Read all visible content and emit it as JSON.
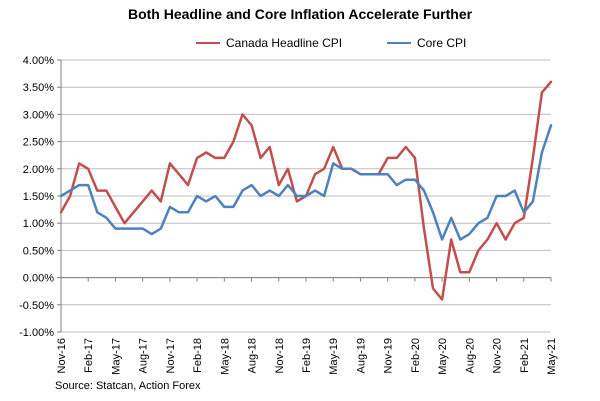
{
  "title": "Both Headline and Core Inflation Accelerate Further",
  "source": "Source: Statcan, Action Forex",
  "chart_data": {
    "type": "line",
    "title": "Both Headline and Core Inflation Accelerate Further",
    "xlabel": "",
    "ylabel": "",
    "ylim": [
      -1.0,
      4.0
    ],
    "y_ticks": [
      "4.00%",
      "3.50%",
      "3.00%",
      "2.50%",
      "2.00%",
      "1.50%",
      "1.00%",
      "0.50%",
      "0.00%",
      "-0.50%",
      "-1.00%"
    ],
    "x_tick_labels": [
      "Nov-16",
      "Feb-17",
      "May-17",
      "Aug-17",
      "Nov-17",
      "Feb-18",
      "May-18",
      "Aug-18",
      "Nov-18",
      "Feb-19",
      "May-19",
      "Aug-19",
      "Nov-19",
      "Feb-20",
      "May-20",
      "Aug-20",
      "Nov-20",
      "Feb-21",
      "May-21"
    ],
    "grid": true,
    "legend_position": "top-center",
    "x": [
      "Nov-16",
      "Dec-16",
      "Jan-17",
      "Feb-17",
      "Mar-17",
      "Apr-17",
      "May-17",
      "Jun-17",
      "Jul-17",
      "Aug-17",
      "Sep-17",
      "Oct-17",
      "Nov-17",
      "Dec-17",
      "Jan-18",
      "Feb-18",
      "Mar-18",
      "Apr-18",
      "May-18",
      "Jun-18",
      "Jul-18",
      "Aug-18",
      "Sep-18",
      "Oct-18",
      "Nov-18",
      "Dec-18",
      "Jan-19",
      "Feb-19",
      "Mar-19",
      "Apr-19",
      "May-19",
      "Jun-19",
      "Jul-19",
      "Aug-19",
      "Sep-19",
      "Oct-19",
      "Nov-19",
      "Dec-19",
      "Jan-20",
      "Feb-20",
      "Mar-20",
      "Apr-20",
      "May-20",
      "Jun-20",
      "Jul-20",
      "Aug-20",
      "Sep-20",
      "Oct-20",
      "Nov-20",
      "Dec-20",
      "Jan-21",
      "Feb-21",
      "Mar-21",
      "Apr-21",
      "May-21"
    ],
    "series": [
      {
        "name": "Canada Headline CPI",
        "color": "#c0504d",
        "values": [
          1.2,
          1.5,
          2.1,
          2.0,
          1.6,
          1.6,
          1.3,
          1.0,
          1.2,
          1.4,
          1.6,
          1.4,
          2.1,
          1.9,
          1.7,
          2.2,
          2.3,
          2.2,
          2.2,
          2.5,
          3.0,
          2.8,
          2.2,
          2.4,
          1.7,
          2.0,
          1.4,
          1.5,
          1.9,
          2.0,
          2.4,
          2.0,
          2.0,
          1.9,
          1.9,
          1.9,
          2.2,
          2.2,
          2.4,
          2.2,
          0.9,
          -0.2,
          -0.4,
          0.7,
          0.1,
          0.1,
          0.5,
          0.7,
          1.0,
          0.7,
          1.0,
          1.1,
          2.2,
          3.4,
          3.6
        ]
      },
      {
        "name": "Core CPI",
        "color": "#4f81bd",
        "values": [
          1.5,
          1.6,
          1.7,
          1.7,
          1.2,
          1.1,
          0.9,
          0.9,
          0.9,
          0.9,
          0.8,
          0.9,
          1.3,
          1.2,
          1.2,
          1.5,
          1.4,
          1.5,
          1.3,
          1.3,
          1.6,
          1.7,
          1.5,
          1.6,
          1.5,
          1.7,
          1.5,
          1.5,
          1.6,
          1.5,
          2.1,
          2.0,
          2.0,
          1.9,
          1.9,
          1.9,
          1.9,
          1.7,
          1.8,
          1.8,
          1.6,
          1.2,
          0.7,
          1.1,
          0.7,
          0.8,
          1.0,
          1.1,
          1.5,
          1.5,
          1.6,
          1.2,
          1.4,
          2.3,
          2.8
        ]
      }
    ]
  }
}
